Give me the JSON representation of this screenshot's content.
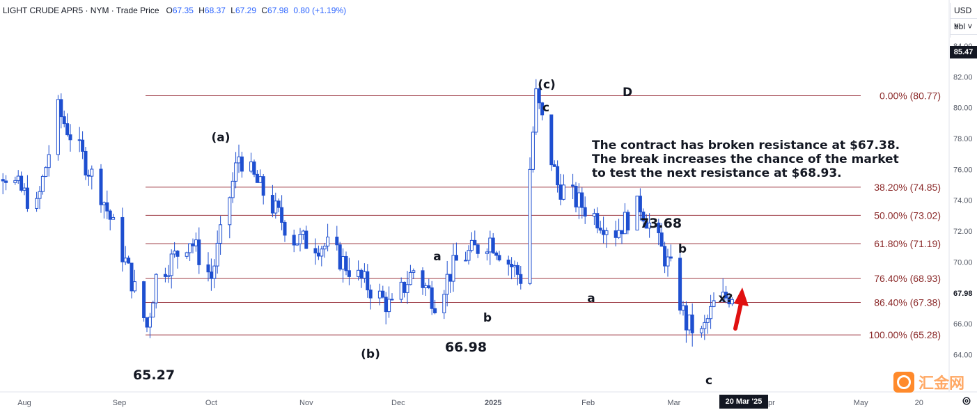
{
  "header": {
    "symbol": "LIGHT CRUDE APR5 · NYM · Trade Price",
    "o_label": "O",
    "o": "67.35",
    "h_label": "H",
    "h": "68.37",
    "l_label": "L",
    "l": "67.29",
    "c_label": "C",
    "c": "67.98",
    "change": "0.80 (+1.19%)"
  },
  "currency": "USD",
  "unit": "bbl",
  "current_price_tag": "85.47",
  "last_price_label": "67.98",
  "crosshair_date": "20 Mar '25",
  "note_lines": [
    "The contract has broken resistance at $67.38.",
    "The break increases the chance of the market",
    "to test the next resistance at $68.93."
  ],
  "watermark_text": "汇金网",
  "colors": {
    "bull": "#ffffff",
    "bear": "#1e4fd0",
    "candle_stroke": "#1e4fd0",
    "fib_line": "#a0404a",
    "fib_text": "#8b2a2a",
    "arrow": "#e01010"
  },
  "chart_data": {
    "type": "candlestick",
    "title": "",
    "xlabel": "",
    "ylabel": "",
    "ylim": [
      63.0,
      85.6
    ],
    "y_ticks": [
      "64.00",
      "66.00",
      "67.98",
      "70.00",
      "72.00",
      "74.00",
      "76.00",
      "78.00",
      "80.00",
      "82.00",
      "84.00"
    ],
    "x_ticks": [
      "Aug",
      "Sep",
      "Oct",
      "Nov",
      "Dec",
      "2025",
      "Feb",
      "Mar",
      "Apr",
      "May",
      "20"
    ],
    "fib_levels": [
      {
        "label": "0.00% (80.77)",
        "value": 80.77
      },
      {
        "label": "38.20% (74.85)",
        "value": 74.85
      },
      {
        "label": "50.00% (73.02)",
        "value": 73.02
      },
      {
        "label": "61.80% (71.19)",
        "value": 71.19
      },
      {
        "label": "76.40% (68.93)",
        "value": 68.93
      },
      {
        "label": "86.40% (67.38)",
        "value": 67.38
      },
      {
        "label": "100.00% (65.28)",
        "value": 65.28
      }
    ],
    "annotations": [
      {
        "text": "(a)"
      },
      {
        "text": "(b)"
      },
      {
        "text": "(c)"
      },
      {
        "text": "c"
      },
      {
        "text": "D"
      },
      {
        "text": "a"
      },
      {
        "text": "b"
      },
      {
        "text": "a"
      },
      {
        "text": "b"
      },
      {
        "text": "c"
      },
      {
        "text": "x?"
      },
      {
        "text": "65.27"
      },
      {
        "text": "66.98"
      },
      {
        "text": "73.68"
      }
    ],
    "series_anchors": [
      {
        "date": "2024-07-15",
        "close": 78.5
      },
      {
        "date": "2024-07-22",
        "close": 76.5
      },
      {
        "date": "2024-08-05",
        "close": 73.5
      },
      {
        "date": "2024-08-12",
        "close": 79.8
      },
      {
        "date": "2024-08-26",
        "close": 74.5
      },
      {
        "date": "2024-09-03",
        "close": 70.0
      },
      {
        "date": "2024-09-10",
        "close": 65.8
      },
      {
        "date": "2024-09-13",
        "close": 69.0
      },
      {
        "date": "2024-09-24",
        "close": 71.5
      },
      {
        "date": "2024-10-01",
        "close": 69.0
      },
      {
        "date": "2024-10-10",
        "close": 76.9
      },
      {
        "date": "2024-10-18",
        "close": 74.5
      },
      {
        "date": "2024-10-28",
        "close": 71.5
      },
      {
        "date": "2024-11-08",
        "close": 71.0
      },
      {
        "date": "2024-11-18",
        "close": 69.0
      },
      {
        "date": "2024-11-29",
        "close": 67.0
      },
      {
        "date": "2024-12-06",
        "close": 69.5
      },
      {
        "date": "2024-12-13",
        "close": 67.5
      },
      {
        "date": "2024-12-20",
        "close": 70.0
      },
      {
        "date": "2024-12-31",
        "close": 71.5
      },
      {
        "date": "2025-01-10",
        "close": 69.0
      },
      {
        "date": "2025-01-15",
        "close": 80.77
      },
      {
        "date": "2025-01-22",
        "close": 75.0
      },
      {
        "date": "2025-02-03",
        "close": 73.0
      },
      {
        "date": "2025-02-10",
        "close": 72.0
      },
      {
        "date": "2025-02-18",
        "close": 73.68
      },
      {
        "date": "2025-02-28",
        "close": 69.5
      },
      {
        "date": "2025-03-05",
        "close": 66.0
      },
      {
        "date": "2025-03-10",
        "close": 65.27
      },
      {
        "date": "2025-03-14",
        "close": 67.2
      },
      {
        "date": "2025-03-20",
        "close": 67.98
      }
    ]
  }
}
